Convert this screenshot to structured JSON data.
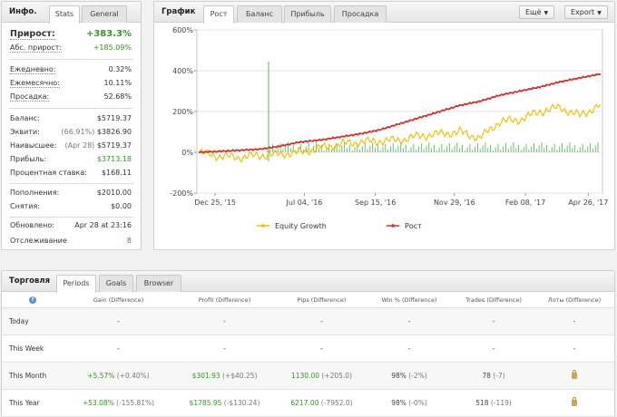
{
  "info": {
    "title": "Инфо.",
    "tabs": [
      "Stats",
      "General"
    ],
    "growth": {
      "label": "Прирост:",
      "value": "+383.3%"
    },
    "abs_growth": {
      "label": "Абс. прирост:",
      "value": "+185.09%"
    },
    "daily": {
      "label": "Ежедневно:",
      "value": "0.32%"
    },
    "monthly": {
      "label": "Ежемесячно:",
      "value": "10.11%"
    },
    "drawdown": {
      "label": "Просадка:",
      "value": "52.68%"
    },
    "balance": {
      "label": "Баланс:",
      "value": "$5719.37"
    },
    "equity": {
      "label": "Эквити:",
      "pct": "(66.91%)",
      "value": "$3826.90"
    },
    "highest": {
      "label": "Наивысшее:",
      "date": "(Apr 28)",
      "value": "$5719.37"
    },
    "profit": {
      "label": "Прибыль:",
      "value": "$3713.18"
    },
    "interest": {
      "label": "Процентная ставка:",
      "value": "$168.11"
    },
    "deposits": {
      "label": "Пополнения:",
      "value": "$2010.00"
    },
    "withdrawals": {
      "label": "Снятия:",
      "value": "$0.00"
    },
    "updated": {
      "label": "Обновлено:",
      "value": "Apr 28 at 23:16"
    },
    "tracking": {
      "label": "Отслеживание",
      "value": "8"
    }
  },
  "chart_panel": {
    "title": "График",
    "tabs": [
      "Рост",
      "Баланс",
      "Прибыль",
      "Просадка"
    ],
    "more_label": "Ещё",
    "export_label": "Export"
  },
  "chart_data": {
    "type": "line",
    "x_ticks": [
      "Dec 25, '15",
      "Jul 04, '16",
      "Sep 15, '16",
      "Nov 29, '16",
      "Feb 08, '17",
      "Apr 26, '17"
    ],
    "y_ticks": [
      "600%",
      "400%",
      "200%",
      "0%",
      "-200%"
    ],
    "ylim": [
      -200,
      600
    ],
    "grid": true,
    "legend_position": "bottom",
    "series": [
      {
        "name": "Equity Growth",
        "color": "#f0c000",
        "x": [
          0,
          0.05,
          0.1,
          0.15,
          0.2,
          0.25,
          0.3,
          0.35,
          0.4,
          0.45,
          0.5,
          0.55,
          0.6,
          0.65,
          0.7,
          0.75,
          0.8,
          0.85,
          0.9,
          0.95,
          1.0
        ],
        "values": [
          0,
          -20,
          -25,
          -15,
          -10,
          0,
          20,
          40,
          50,
          55,
          60,
          80,
          90,
          100,
          70,
          150,
          160,
          200,
          220,
          180,
          230
        ]
      },
      {
        "name": "Рост",
        "color": "#d42a2a",
        "x": [
          0,
          0.05,
          0.1,
          0.15,
          0.2,
          0.25,
          0.3,
          0.35,
          0.4,
          0.45,
          0.5,
          0.55,
          0.6,
          0.65,
          0.7,
          0.75,
          0.8,
          0.85,
          0.9,
          0.95,
          1.0
        ],
        "values": [
          0,
          5,
          10,
          15,
          30,
          50,
          60,
          75,
          90,
          110,
          140,
          170,
          200,
          230,
          250,
          280,
          300,
          320,
          345,
          365,
          383
        ]
      }
    ]
  },
  "trading": {
    "title": "Торговля",
    "tabs": [
      "Periods",
      "Goals",
      "Browser"
    ],
    "help_icon": "question-icon",
    "headers": [
      "Gain (Difference)",
      "Profit (Difference)",
      "Pips (Difference)",
      "Win % (Difference)",
      "Trades (Difference)",
      "Лоты (Difference)"
    ],
    "rows": [
      {
        "period": "Today",
        "gain": "-",
        "gain_diff": "",
        "profit": "-",
        "profit_diff": "",
        "pips": "-",
        "pips_diff": "",
        "win": "-",
        "win_diff": "",
        "trades": "-",
        "trades_diff": "",
        "lots": "-"
      },
      {
        "period": "This Week",
        "gain": "-",
        "gain_diff": "",
        "profit": "-",
        "profit_diff": "",
        "pips": "-",
        "pips_diff": "",
        "win": "-",
        "win_diff": "",
        "trades": "-",
        "trades_diff": "",
        "lots": "-"
      },
      {
        "period": "This Month",
        "gain": "+5.57%",
        "gain_diff": "(+0.40%)",
        "profit": "$301.93",
        "profit_diff": "(+$40.25)",
        "pips": "1130.00",
        "pips_diff": "(+205.0)",
        "win": "98%",
        "win_diff": "(-2%)",
        "trades": "78",
        "trades_diff": "(-7)",
        "lots": "lock"
      },
      {
        "period": "This Year",
        "gain": "+53.08%",
        "gain_diff": "(-155.81%)",
        "profit": "$1785.95",
        "profit_diff": "(-$130.24)",
        "pips": "6217.00",
        "pips_diff": "(-7952.0)",
        "win": "98%",
        "win_diff": "(-0%)",
        "trades": "518",
        "trades_diff": "(-119)",
        "lots": "lock"
      }
    ]
  }
}
